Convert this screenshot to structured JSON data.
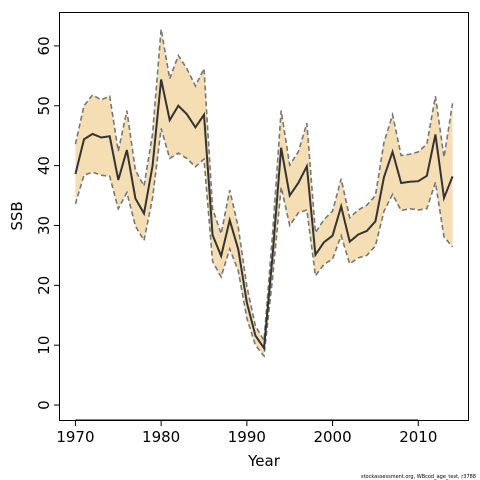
{
  "chart_data": {
    "type": "area",
    "xlabel": "Year",
    "ylabel": "SSB",
    "xlim": [
      1968.2,
      2015.8
    ],
    "ylim": [
      -2.5,
      65.5
    ],
    "x_ticks": [
      1970,
      1980,
      1990,
      2000,
      2010
    ],
    "y_ticks": [
      0,
      10,
      20,
      30,
      40,
      50,
      60
    ],
    "x": [
      1970,
      1971,
      1972,
      1973,
      1974,
      1975,
      1976,
      1977,
      1978,
      1979,
      1980,
      1981,
      1982,
      1983,
      1984,
      1985,
      1986,
      1987,
      1988,
      1989,
      1990,
      1991,
      1992,
      1993,
      1994,
      1995,
      1996,
      1997,
      1998,
      1999,
      2000,
      2001,
      2002,
      2003,
      2004,
      2005,
      2006,
      2007,
      2008,
      2009,
      2010,
      2011,
      2012,
      2013,
      2014
    ],
    "series": [
      {
        "values": [
          38.6,
          44.4,
          45.3,
          44.7,
          44.9,
          37.6,
          42.6,
          34.5,
          32.0,
          40.0,
          54.4,
          47.6,
          50.0,
          48.6,
          46.4,
          48.5,
          28.4,
          24.9,
          30.9,
          26.0,
          17.1,
          11.6,
          9.5,
          24.9,
          43.0,
          35.0,
          37.1,
          39.9,
          25.1,
          27.2,
          28.3,
          33.2,
          27.3,
          28.5,
          29.1,
          30.7,
          38.1,
          42.3,
          37.1,
          37.3,
          37.4,
          38.3,
          45.2,
          34.6,
          38.2
        ]
      },
      {
        "values": [
          33.6,
          38.4,
          38.9,
          38.4,
          38.2,
          32.8,
          35.5,
          29.9,
          27.5,
          34.6,
          46.2,
          41.2,
          42.1,
          41.2,
          39.8,
          41.1,
          24.0,
          21.4,
          26.1,
          22.4,
          14.5,
          10.0,
          8.2,
          21.2,
          36.4,
          30.0,
          32.1,
          32.6,
          21.6,
          23.5,
          24.4,
          28.3,
          23.6,
          24.6,
          25.0,
          26.6,
          32.4,
          35.2,
          32.5,
          32.8,
          32.6,
          32.8,
          37.2,
          28.1,
          26.4
        ]
      },
      {
        "values": [
          43.6,
          50.0,
          51.8,
          51.0,
          51.6,
          42.4,
          49.2,
          39.2,
          36.6,
          45.3,
          62.8,
          54.5,
          58.4,
          56.2,
          53.3,
          56.2,
          32.8,
          28.6,
          35.9,
          29.7,
          19.8,
          13.2,
          10.8,
          28.6,
          49.2,
          40.1,
          42.3,
          47.1,
          28.8,
          31.0,
          32.4,
          37.8,
          31.3,
          32.6,
          33.4,
          35.0,
          43.9,
          48.5,
          41.7,
          41.9,
          42.3,
          43.6,
          51.6,
          41.4,
          50.4
        ]
      }
    ]
  },
  "footer": "stockassessment.org, WBcod_age_test, r3788",
  "colors": {
    "band": "#f5deb3",
    "mean_line": "#333333",
    "ci_line": "#777777"
  }
}
